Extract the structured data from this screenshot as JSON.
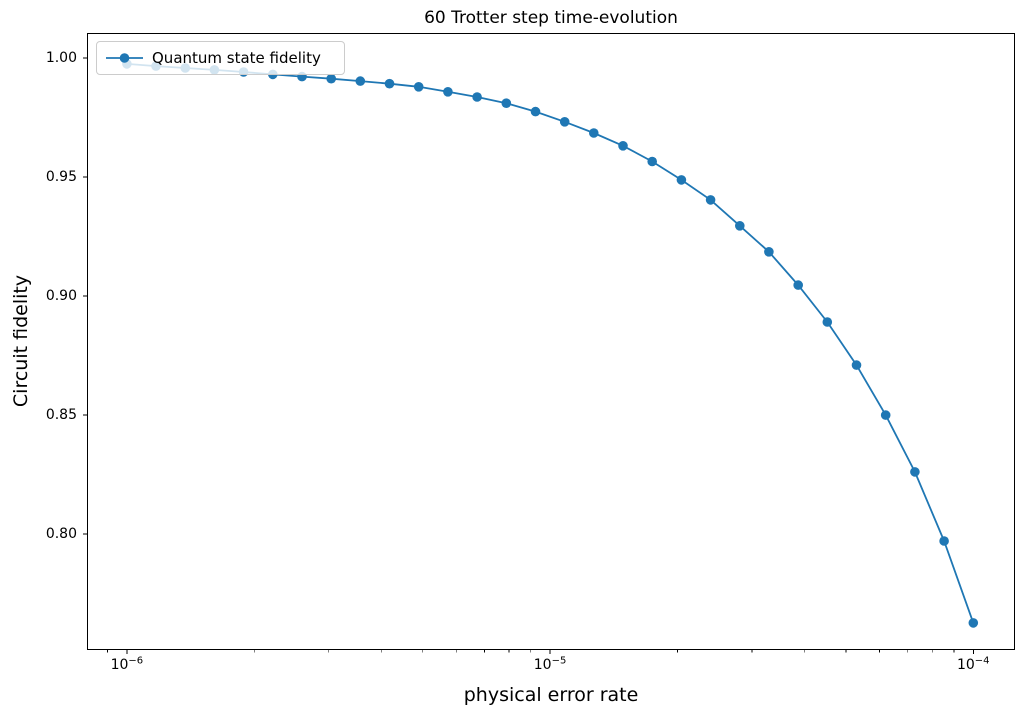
{
  "figure": {
    "background": "#ffffff"
  },
  "chart_data": {
    "type": "line",
    "title": "60 Trotter step time-evolution",
    "xlabel": "physical error rate",
    "ylabel": "Circuit fidelity",
    "xscale": "log",
    "yscale": "linear",
    "grid": false,
    "xlim": [
      8.05e-07,
      0.0001255
    ],
    "ylim": [
      0.7513,
      1.0105
    ],
    "yticks": [
      0.8,
      0.85,
      0.9,
      0.95,
      1.0
    ],
    "xticks": [
      {
        "value": 1e-06,
        "exponent": -6
      },
      {
        "value": 1e-05,
        "exponent": -5
      },
      {
        "value": 0.0001,
        "exponent": -4
      }
    ],
    "legend": {
      "label": "Quantum state fidelity",
      "position": "upper left"
    },
    "axis_color": "#000000",
    "series": [
      {
        "name": "Quantum state fidelity",
        "color": "#1f77b4",
        "marker": "circle",
        "x": [
          1e-06,
          1.172e-06,
          1.374e-06,
          1.61e-06,
          1.887e-06,
          2.212e-06,
          2.593e-06,
          3.039e-06,
          3.562e-06,
          4.175e-06,
          4.894e-06,
          5.736e-06,
          6.723e-06,
          7.881e-06,
          9.237e-06,
          1.083e-05,
          1.269e-05,
          1.487e-05,
          1.743e-05,
          2.043e-05,
          2.395e-05,
          2.807e-05,
          3.29e-05,
          3.857e-05,
          4.52e-05,
          5.298e-05,
          6.21e-05,
          7.279e-05,
          8.532e-05,
          0.0001
        ],
        "y": [
          0.9975,
          0.9966,
          0.9958,
          0.995,
          0.9941,
          0.9931,
          0.9922,
          0.9913,
          0.9903,
          0.9892,
          0.9879,
          0.9858,
          0.9836,
          0.981,
          0.9775,
          0.9732,
          0.9685,
          0.9631,
          0.9565,
          0.9488,
          0.9404,
          0.9295,
          0.9186,
          0.9046,
          0.8891,
          0.871,
          0.85,
          0.8261,
          0.7971,
          0.7627
        ]
      }
    ]
  }
}
